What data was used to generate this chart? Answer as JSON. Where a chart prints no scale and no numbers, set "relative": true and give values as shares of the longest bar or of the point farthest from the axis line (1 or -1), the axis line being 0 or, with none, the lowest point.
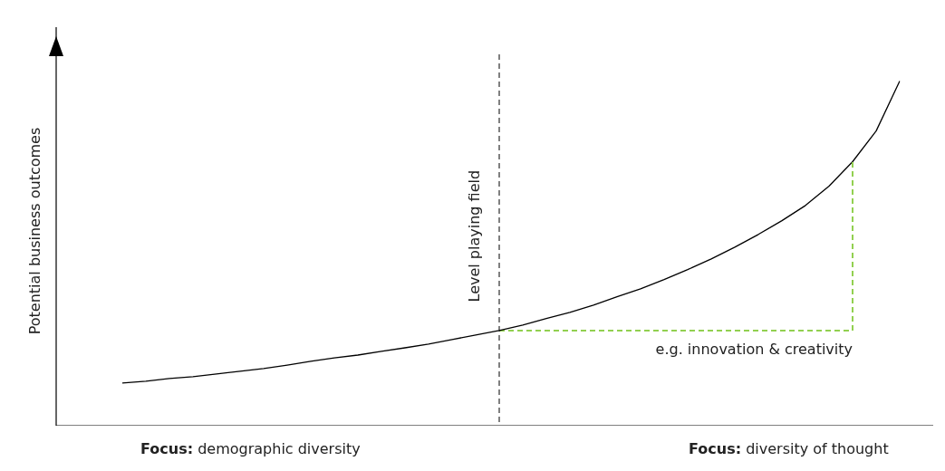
{
  "chart_data": {
    "type": "line",
    "relative": true,
    "ylabel": "Potential business outcomes",
    "tick_labels": false,
    "legend": false,
    "marker": "none",
    "categories": [
      null,
      null,
      null,
      null,
      null,
      null,
      null,
      null,
      null,
      null,
      null,
      null,
      null,
      null,
      null,
      null,
      null,
      null,
      null,
      null,
      null,
      null,
      null,
      null,
      null,
      null,
      null,
      null,
      null,
      null,
      null,
      null,
      null,
      null
    ],
    "series": [
      {
        "color": "#000000",
        "line_style": "solid",
        "values": [
          0.124,
          0.129,
          0.137,
          0.142,
          0.15,
          0.158,
          0.166,
          0.176,
          0.187,
          0.197,
          0.205,
          0.216,
          0.226,
          0.237,
          0.25,
          0.263,
          0.276,
          0.292,
          0.311,
          0.329,
          0.35,
          0.374,
          0.397,
          0.424,
          0.453,
          0.484,
          0.518,
          0.555,
          0.595,
          0.639,
          0.695,
          0.766,
          0.855,
          1
        ]
      },
      {
        "color": "#92d050",
        "line_style": "dashed",
        "values": [
          null,
          null,
          null,
          null,
          null,
          null,
          null,
          null,
          null,
          null,
          null,
          null,
          null,
          null,
          null,
          null,
          0.276,
          0.276,
          0.276,
          0.276,
          0.276,
          0.276,
          0.276,
          0.276,
          0.276,
          0.276,
          0.276,
          0.276,
          0.276,
          0.276,
          0.276,
          0.276,
          null,
          null
        ]
      }
    ],
    "ref_lines": [
      {
        "axis": "x",
        "label": "Level playing field",
        "color": "#000000",
        "line_style": "dashed"
      }
    ],
    "annotations": [
      "e.g. innovation & creativity",
      "Focus: demographic diversity",
      "Focus: diversity of thought"
    ]
  }
}
